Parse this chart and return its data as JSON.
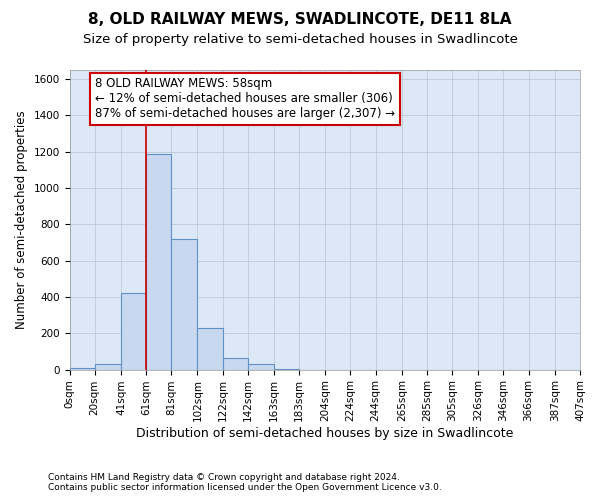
{
  "title": "8, OLD RAILWAY MEWS, SWADLINCOTE, DE11 8LA",
  "subtitle": "Size of property relative to semi-detached houses in Swadlincote",
  "xlabel": "Distribution of semi-detached houses by size in Swadlincote",
  "ylabel": "Number of semi-detached properties",
  "footnote1": "Contains HM Land Registry data © Crown copyright and database right 2024.",
  "footnote2": "Contains public sector information licensed under the Open Government Licence v3.0.",
  "annotation_title": "8 OLD RAILWAY MEWS: 58sqm",
  "annotation_line1": "← 12% of semi-detached houses are smaller (306)",
  "annotation_line2": "87% of semi-detached houses are larger (2,307) →",
  "bar_edges": [
    0,
    20,
    41,
    61,
    81,
    102,
    122,
    142,
    163,
    183,
    204,
    224,
    244,
    265,
    285,
    305,
    326,
    346,
    366,
    387,
    407
  ],
  "bar_heights": [
    10,
    30,
    420,
    1185,
    720,
    230,
    65,
    30,
    5,
    0,
    0,
    0,
    0,
    0,
    0,
    0,
    0,
    0,
    0,
    0
  ],
  "bar_color": "#c8d8ee",
  "bar_edge_color": "#6090c8",
  "vline_color": "#cc0000",
  "vline_x": 61,
  "annotation_box_color": "#cc0000",
  "ylim": [
    0,
    1650
  ],
  "yticks": [
    0,
    200,
    400,
    600,
    800,
    1000,
    1200,
    1400,
    1600
  ],
  "grid_color": "#c0c8d8",
  "bg_color": "#dce8f5",
  "title_fontsize": 11,
  "subtitle_fontsize": 9.5,
  "ylabel_fontsize": 8.5,
  "xlabel_fontsize": 9,
  "footnote_fontsize": 6.5,
  "annotation_fontsize": 8.5,
  "tick_fontsize": 7.5
}
